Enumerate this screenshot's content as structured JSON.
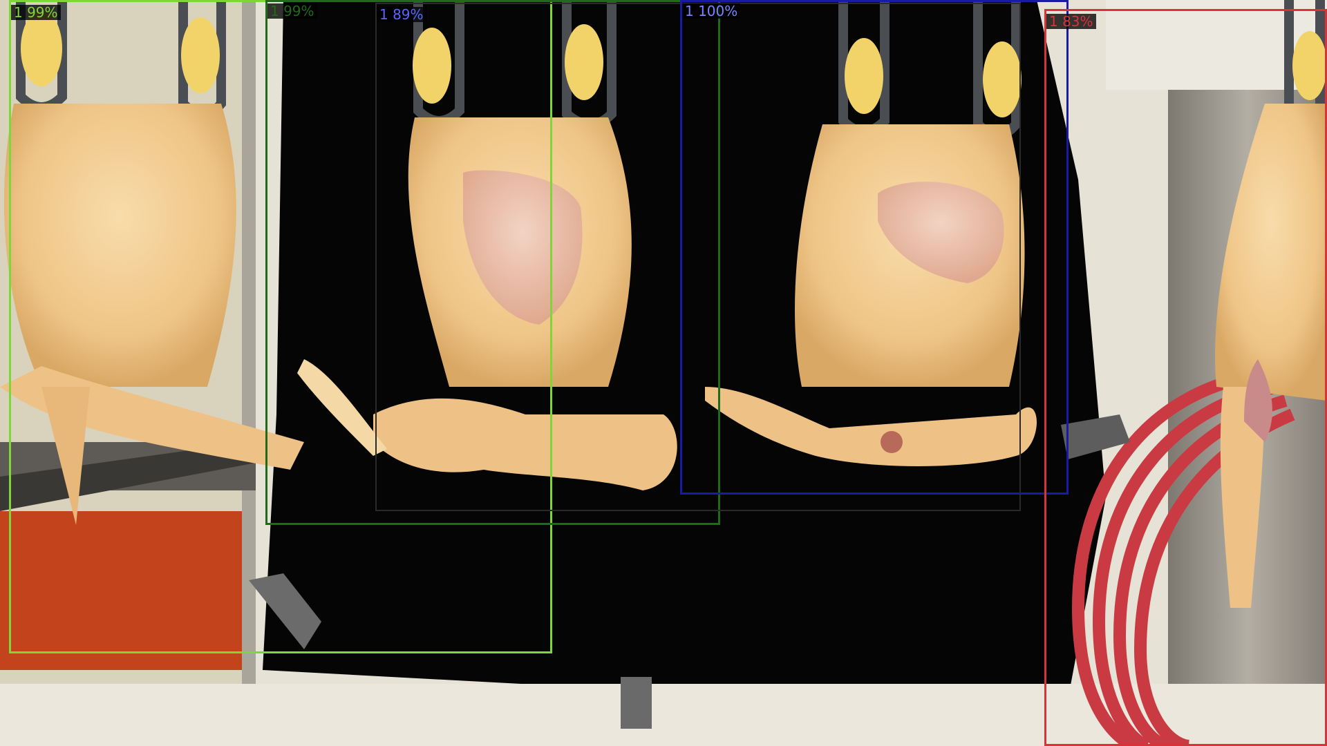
{
  "scene": {
    "description_icon": "poultry-carcass-icon",
    "colors": {
      "curtain": "#050505",
      "wall": "#e6e2d6",
      "carcass": "#f2cf92",
      "carcass_shadow": "#d9a865",
      "shackle": "#4a4e52",
      "hose": "#c93a42",
      "steel": "#9a958d",
      "floor": "#c2431c"
    }
  },
  "detections": [
    {
      "id": "det-1",
      "label": "1 99%",
      "color": "#7fd63a"
    },
    {
      "id": "det-2",
      "label": "1 99%",
      "color": "#1f6b1a"
    },
    {
      "id": "det-3",
      "label": "1 89%",
      "color": "#2a2a2a",
      "label_color": "#5a66ff"
    },
    {
      "id": "det-4",
      "label": "1 100%",
      "color": "#1a1aa8",
      "label_color": "#7a84ff"
    },
    {
      "id": "det-5",
      "label": "1 83%",
      "color": "#d8333a"
    }
  ]
}
